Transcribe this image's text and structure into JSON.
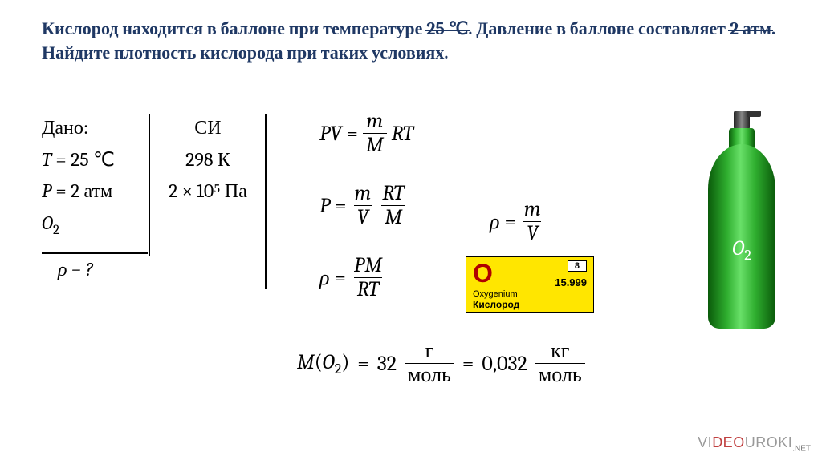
{
  "colors": {
    "title": "#1f3864",
    "text": "#000000",
    "background": "#ffffff",
    "cylinder_gradient": [
      "#0a5a0a",
      "#2fae2f",
      "#69e069",
      "#2fae2f",
      "#0a5a0a"
    ],
    "element_card_bg": "#ffe600",
    "element_symbol": "#b00000",
    "watermark": "#999999"
  },
  "title": {
    "full": "Кислород находится в баллоне при температуре 25 ℃. Давление в баллоне составляет 2 атм. Найдите плотность кислорода при таких условиях.",
    "seg1": "Кислород находится в баллоне при температуре ",
    "t_strike": "25 ℃",
    "seg2": ". Давление в баллоне составляет ",
    "p_strike": "2 атм",
    "seg3": ". Найдите плотность кислорода при таких условиях.",
    "fontsize": 22
  },
  "given": {
    "header": "Дано:",
    "T_line": "T = 25 ℃",
    "P_line": "P = 2 атм",
    "gas": "O₂",
    "find": "ρ − ?"
  },
  "si": {
    "header": "СИ",
    "T_value": "298 К",
    "P_value": "2 × 10⁵ Па"
  },
  "equations": {
    "eq1_lhs": "PV",
    "eq1_frac_num": "m",
    "eq1_frac_den": "M",
    "eq1_rhs_tail": "RT",
    "eq2_lhs": "P",
    "eq2_f1_num": "m",
    "eq2_f1_den": "V",
    "eq2_f2_num": "RT",
    "eq2_f2_den": "M",
    "eq3_lhs": "ρ",
    "eq3_num": "PM",
    "eq3_den": "RT",
    "eq4_lhs": "ρ",
    "eq4_num": "m",
    "eq4_den": "V",
    "eq_sign": "="
  },
  "molar": {
    "lhs": "M(O₂)",
    "val1": "32",
    "unit1_num": "г",
    "unit1_den": "моль",
    "val2": "0,032",
    "unit2_num": "кг",
    "unit2_den": "моль"
  },
  "element_card": {
    "symbol": "O",
    "atomic_number": "8",
    "atomic_mass": "15.999",
    "latin": "Oxygenium",
    "russian": "Кислород"
  },
  "cylinder": {
    "label_html": "O₂"
  },
  "watermark": {
    "p1": "VI",
    "p2": "DEO",
    "p3": "UROKI",
    "p4": ".NET"
  }
}
